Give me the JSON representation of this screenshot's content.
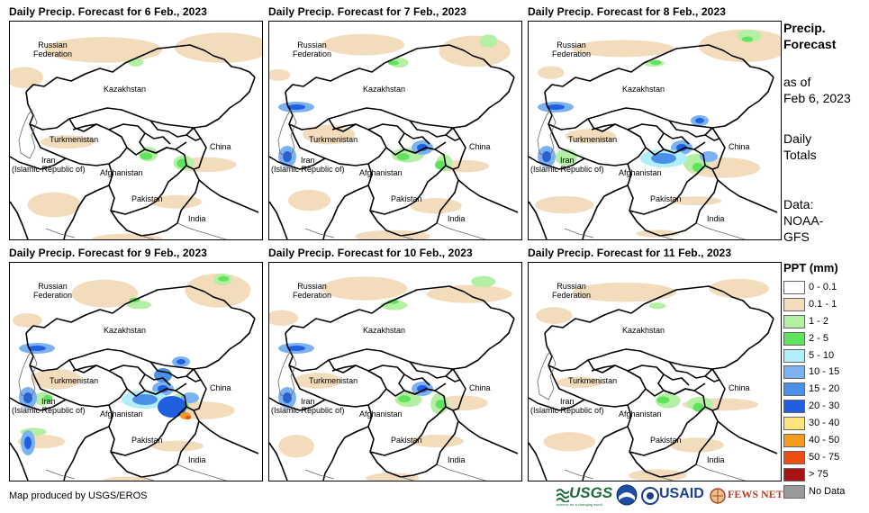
{
  "panels": [
    {
      "title": "Daily Precip. Forecast for 6 Feb., 2023",
      "intensity": 1
    },
    {
      "title": "Daily Precip. Forecast for 7 Feb., 2023",
      "intensity": 2
    },
    {
      "title": "Daily Precip. Forecast for 8 Feb., 2023",
      "intensity": 3
    },
    {
      "title": "Daily Precip. Forecast for 9 Feb., 2023",
      "intensity": 4
    },
    {
      "title": "Daily Precip. Forecast for 10 Feb., 2023",
      "intensity": 2
    },
    {
      "title": "Daily Precip. Forecast for 11 Feb., 2023",
      "intensity": 1
    }
  ],
  "map_labels": {
    "russia": "Russian\nFederation",
    "kazakhstan": "Kazakhstan",
    "turkmenistan": "Turkmenistan",
    "iran": "Iran\n(Islamic Republic of)",
    "afghanistan": "Afghanistan",
    "pakistan": "Pakistan",
    "china": "China",
    "india": "India"
  },
  "side_info": {
    "title_line1": "Precip.",
    "title_line2": "Forecast",
    "asof_line1": "as of",
    "asof_line2": "Feb 6, 2023",
    "daily_line1": "Daily",
    "daily_line2": "Totals",
    "data_line1": "Data:",
    "data_line2": "NOAA-",
    "data_line3": "GFS"
  },
  "legend": {
    "title": "PPT (mm)",
    "items": [
      {
        "label": "0 - 0.1",
        "color": "#ffffff"
      },
      {
        "label": "0.1 - 1",
        "color": "#f2dcbb"
      },
      {
        "label": "1 - 2",
        "color": "#b4f0a4"
      },
      {
        "label": "2 - 5",
        "color": "#5fe35f"
      },
      {
        "label": "5 - 10",
        "color": "#b0eefa"
      },
      {
        "label": "10 - 15",
        "color": "#7db2f2"
      },
      {
        "label": "15 - 20",
        "color": "#4a8fe8"
      },
      {
        "label": "20 - 30",
        "color": "#1f5fe0"
      },
      {
        "label": "30 - 40",
        "color": "#fde57c"
      },
      {
        "label": "40 - 50",
        "color": "#f79b1e"
      },
      {
        "label": "50 - 75",
        "color": "#f04d10"
      },
      {
        "label": "> 75",
        "color": "#a81313"
      },
      {
        "label": "No Data",
        "color": "#9a9a9a"
      }
    ]
  },
  "credit": "Map produced by USGS/EROS",
  "logos": {
    "usgs": "USGS",
    "usgs_tagline": "science for a changing world",
    "usaid": "USAID",
    "fews": "FEWS NET"
  }
}
